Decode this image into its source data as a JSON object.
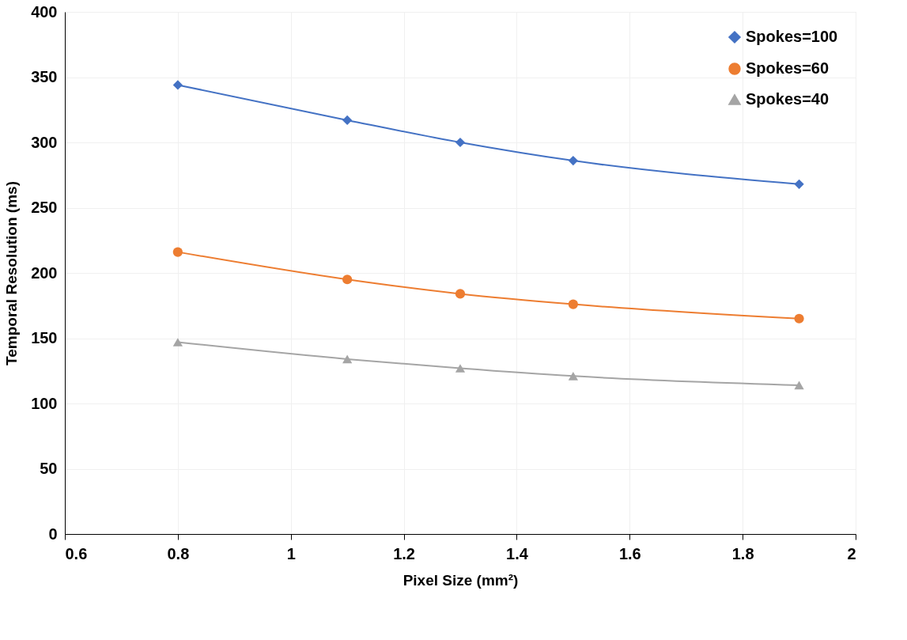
{
  "chart_data": {
    "type": "line",
    "xlabel": "Pixel Size (mm²)",
    "ylabel": "Temporal Resolution (ms)",
    "x": [
      0.8,
      1.1,
      1.3,
      1.5,
      1.9
    ],
    "series": [
      {
        "name": "Spokes=100",
        "color": "#4472c4",
        "marker": "diamond",
        "values": [
          344,
          317,
          300,
          286,
          268
        ]
      },
      {
        "name": "Spokes=60",
        "color": "#ed7d31",
        "marker": "circle",
        "values": [
          216,
          195,
          184,
          176,
          165
        ]
      },
      {
        "name": "Spokes=40",
        "color": "#a5a5a5",
        "marker": "triangle",
        "values": [
          147,
          134,
          127,
          121,
          114
        ]
      }
    ],
    "xlim": [
      0.6,
      2
    ],
    "xticks": [
      0.6,
      0.8,
      1,
      1.2,
      1.4,
      1.6,
      1.8,
      2
    ],
    "ylim": [
      0,
      400
    ],
    "yticks": [
      0,
      50,
      100,
      150,
      200,
      250,
      300,
      350,
      400
    ],
    "grid": true,
    "legend": "top right",
    "line_style": "solid"
  }
}
